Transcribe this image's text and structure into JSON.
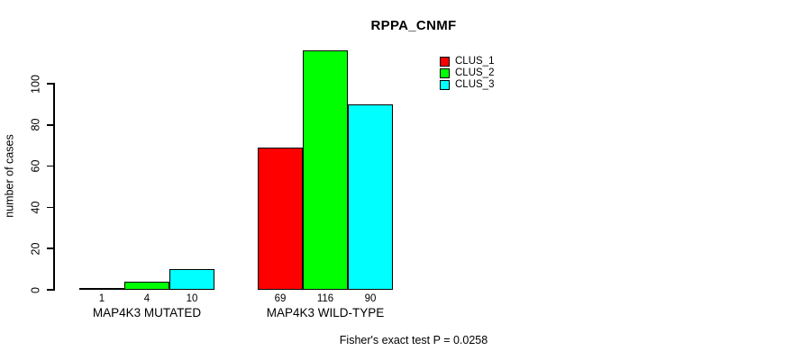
{
  "chart_data": {
    "type": "bar",
    "title": "RPPA_CNMF",
    "xlabel": "",
    "ylabel": "number of cases",
    "categories": [
      "MAP4K3 MUTATED",
      "MAP4K3 WILD-TYPE"
    ],
    "series": [
      {
        "name": "CLUS_1",
        "color": "#ff0000",
        "values": [
          1,
          69
        ]
      },
      {
        "name": "CLUS_2",
        "color": "#00ff00",
        "values": [
          4,
          116
        ]
      },
      {
        "name": "CLUS_3",
        "color": "#00ffff",
        "values": [
          10,
          90
        ]
      }
    ],
    "bar_value_labels": [
      [
        "1",
        "4",
        "10"
      ],
      [
        "69",
        "116",
        "90"
      ]
    ],
    "yticks": [
      0,
      20,
      40,
      60,
      80,
      100
    ],
    "ylim": [
      0,
      116
    ],
    "grid": false,
    "legend_position": "top-right",
    "legend_entries": [
      "CLUS_1",
      "CLUS_2",
      "CLUS_3"
    ],
    "annotation": "Fisher's exact test P = 0.0258",
    "bar_border_color": "#000000",
    "axis_color": "#000000",
    "background_color": "#ffffff"
  }
}
